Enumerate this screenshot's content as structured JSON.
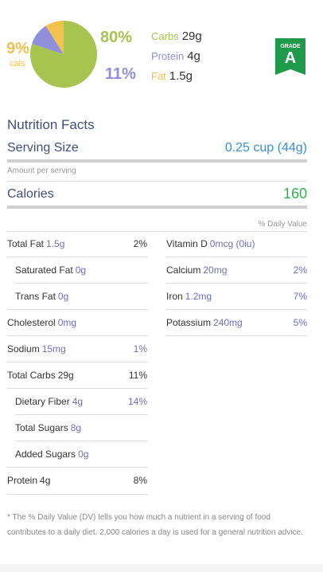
{
  "summary": {
    "pct_fat": "9%",
    "cals_label": "cals",
    "pct_carbs": "80%",
    "pct_protein": "11%",
    "macros": [
      {
        "label": "Carbs",
        "value": "29g",
        "color": "#a6c44f"
      },
      {
        "label": "Protein",
        "value": "4g",
        "color": "#8f8fdc"
      },
      {
        "label": "Fat",
        "value": "1.5g",
        "color": "#f2c14e"
      }
    ],
    "pie_fractions": [
      0.8,
      0.11,
      0.09
    ],
    "grade_word": "GRADE",
    "grade_letter": "A",
    "grade_color": "#1f9a4b"
  },
  "facts": {
    "title": "Nutrition Facts",
    "serving_label": "Serving Size",
    "serving_value": "0.25 cup (44g)",
    "amount_per_serving": "Amount per serving",
    "calories_label": "Calories",
    "calories_value": "160",
    "dv_header": "% Daily Value"
  },
  "left_rows": [
    {
      "label": "Total Fat",
      "amount": "1.5g",
      "pct": "2%"
    },
    {
      "label": "Saturated Fat",
      "amount": "0g",
      "pct": ""
    },
    {
      "label": "Trans Fat",
      "amount": "0g",
      "pct": ""
    },
    {
      "label": "Cholesterol",
      "amount": "0mg",
      "pct": ""
    },
    {
      "label": "Sodium",
      "amount": "15mg",
      "pct": "1%"
    },
    {
      "label": "Total Carbs",
      "amount": "29g",
      "pct": "11%"
    },
    {
      "label": "Dietary Fiber",
      "amount": "4g",
      "pct": "14%"
    },
    {
      "label": "Total Sugars",
      "amount": "8g",
      "pct": ""
    },
    {
      "label": "Added Sugars",
      "amount": "0g",
      "pct": ""
    },
    {
      "label": "Protein",
      "amount": "4g",
      "pct": "8%"
    }
  ],
  "right_rows": [
    {
      "label": "Vitamin D",
      "amount": "0mcg (0iu)",
      "pct": ""
    },
    {
      "label": "Calcium",
      "amount": "20mg",
      "pct": "2%"
    },
    {
      "label": "Iron",
      "amount": "1.2mg",
      "pct": "7%"
    },
    {
      "label": "Potassium",
      "amount": "240mg",
      "pct": "5%"
    }
  ],
  "footnote": "* The % Daily Value (DV) tells you how much a nutrient in a serving of food contributes to a daily diet. 2,000 calories a day is used for a general nutrition advice."
}
